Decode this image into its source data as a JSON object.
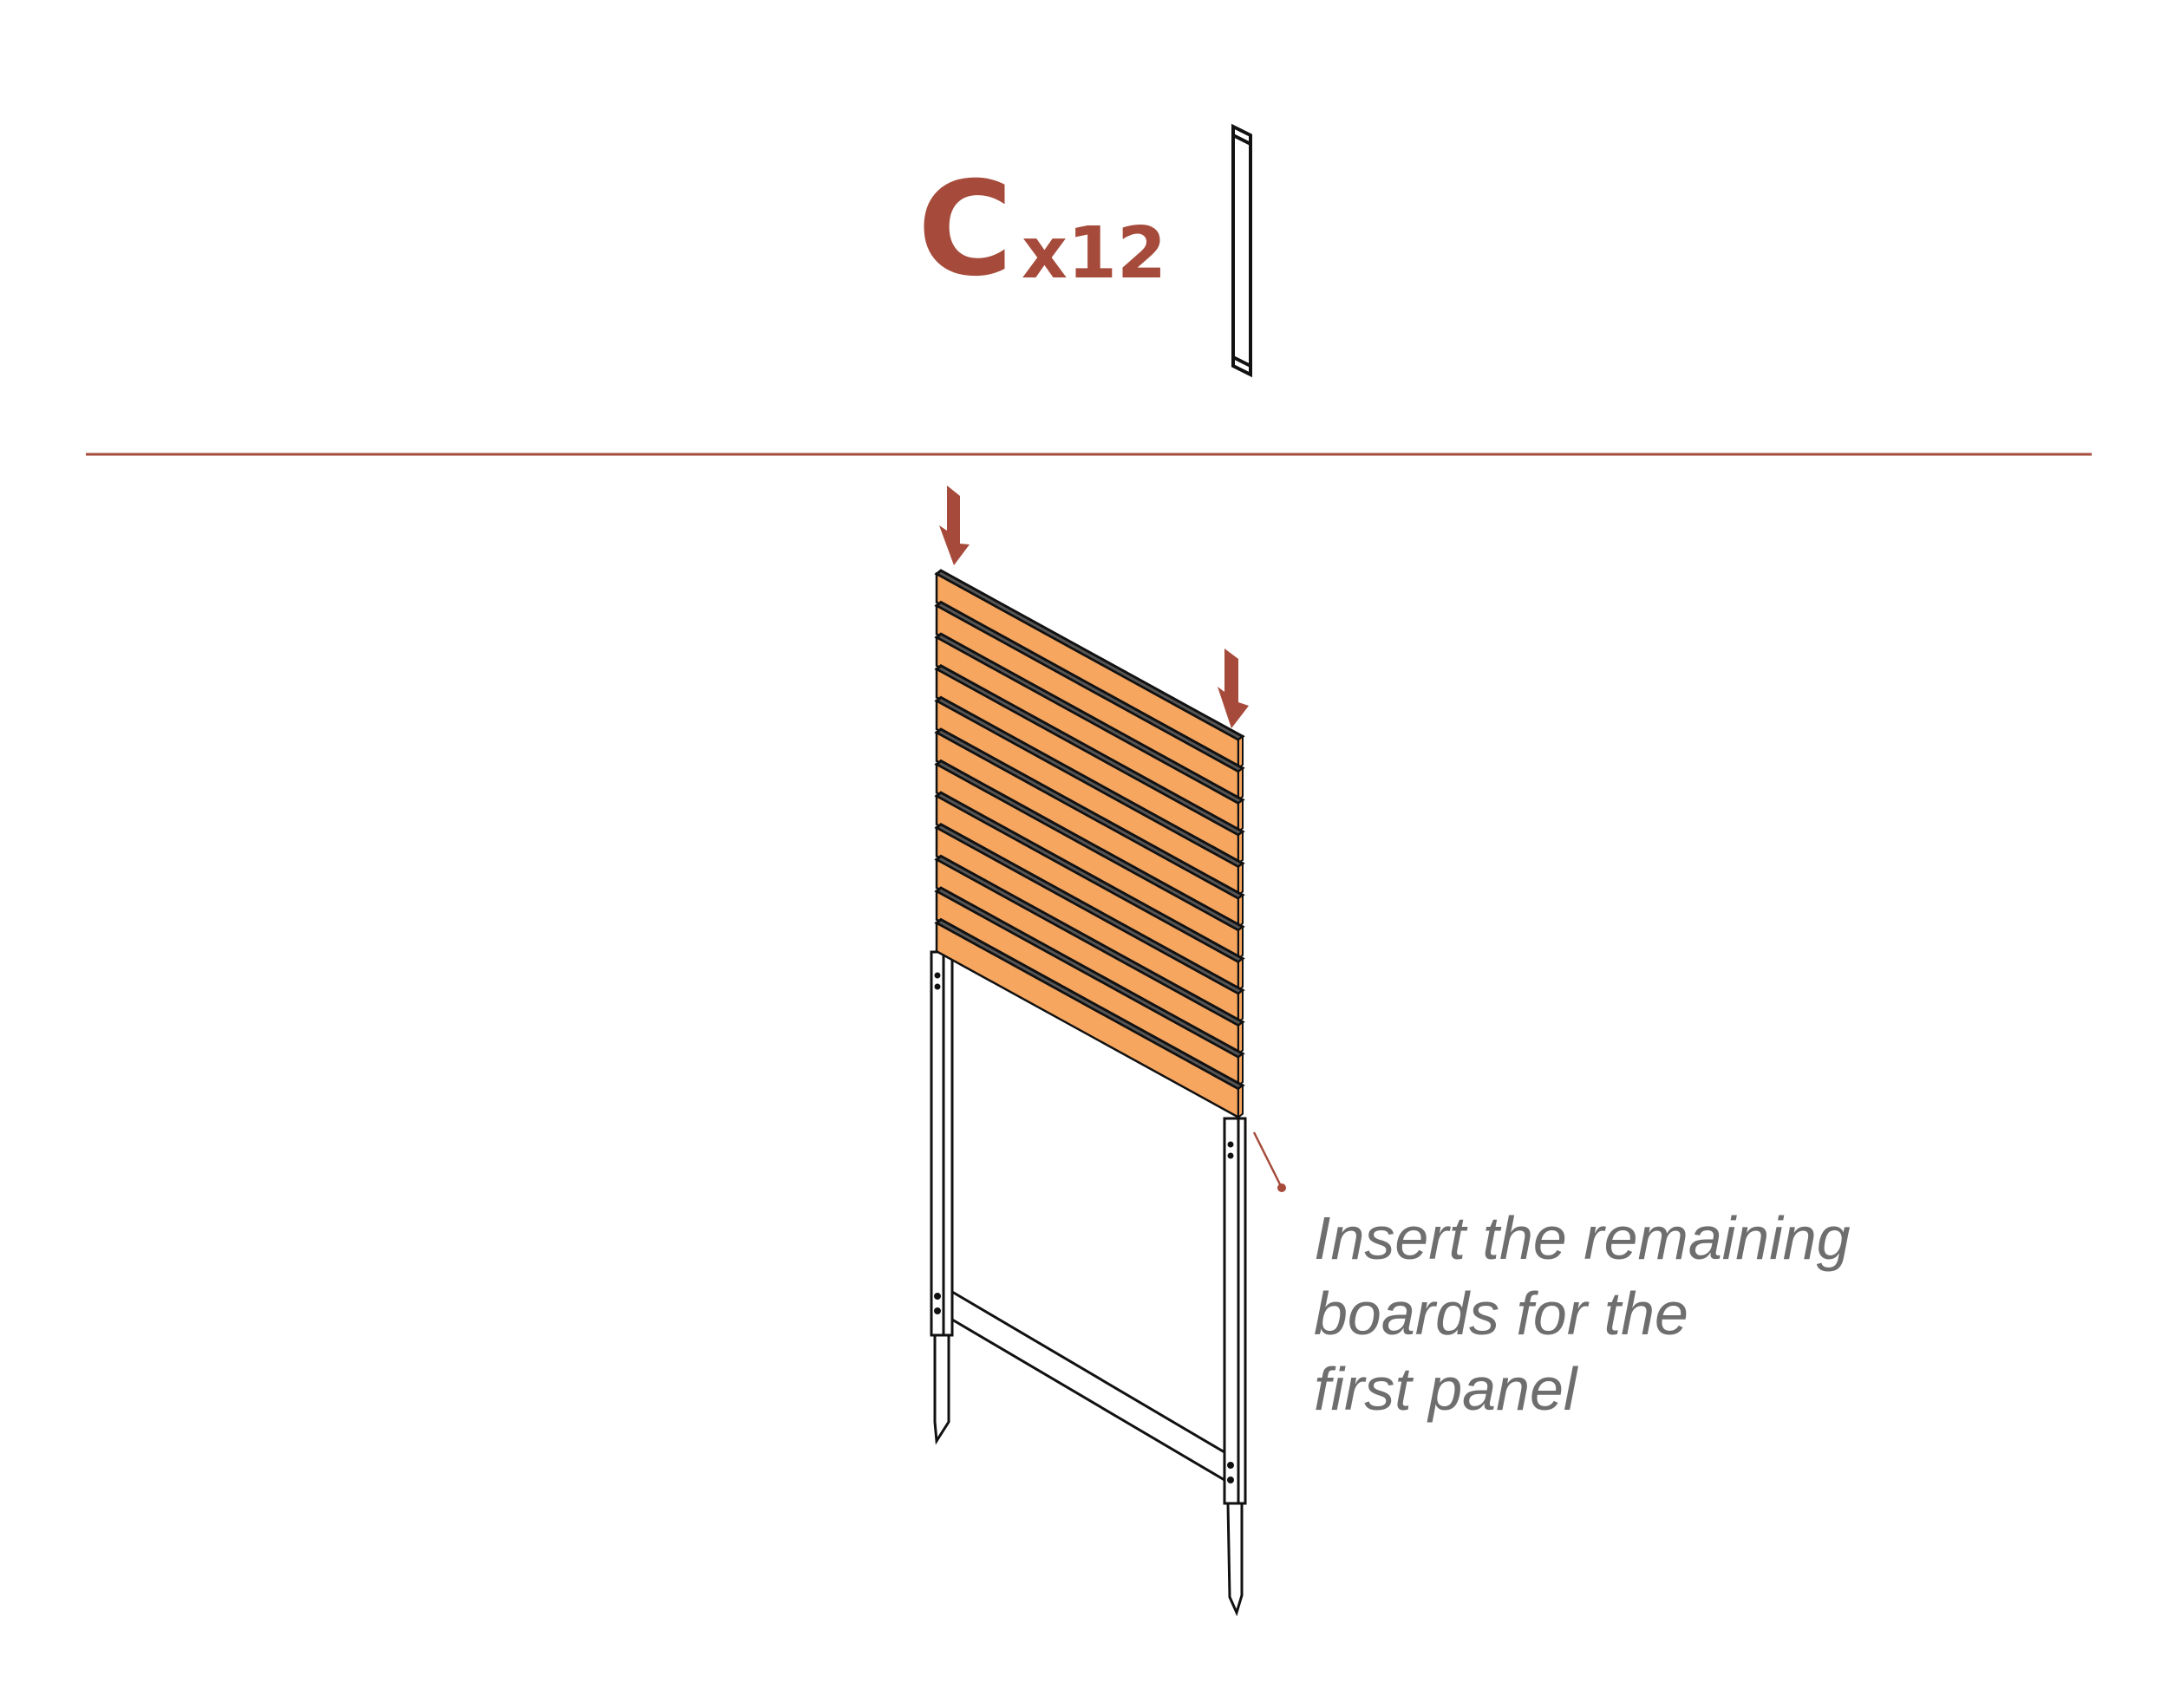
{
  "part": {
    "letter": "C",
    "quantity": "x12"
  },
  "board_count": 12,
  "instruction": {
    "lines": [
      "Insert the remaining",
      "boards for the",
      "first panel"
    ]
  },
  "colors": {
    "accent": "#a64b3b",
    "board": "#f7a65f",
    "text": "#6e6e6e",
    "outline": "#111111"
  }
}
